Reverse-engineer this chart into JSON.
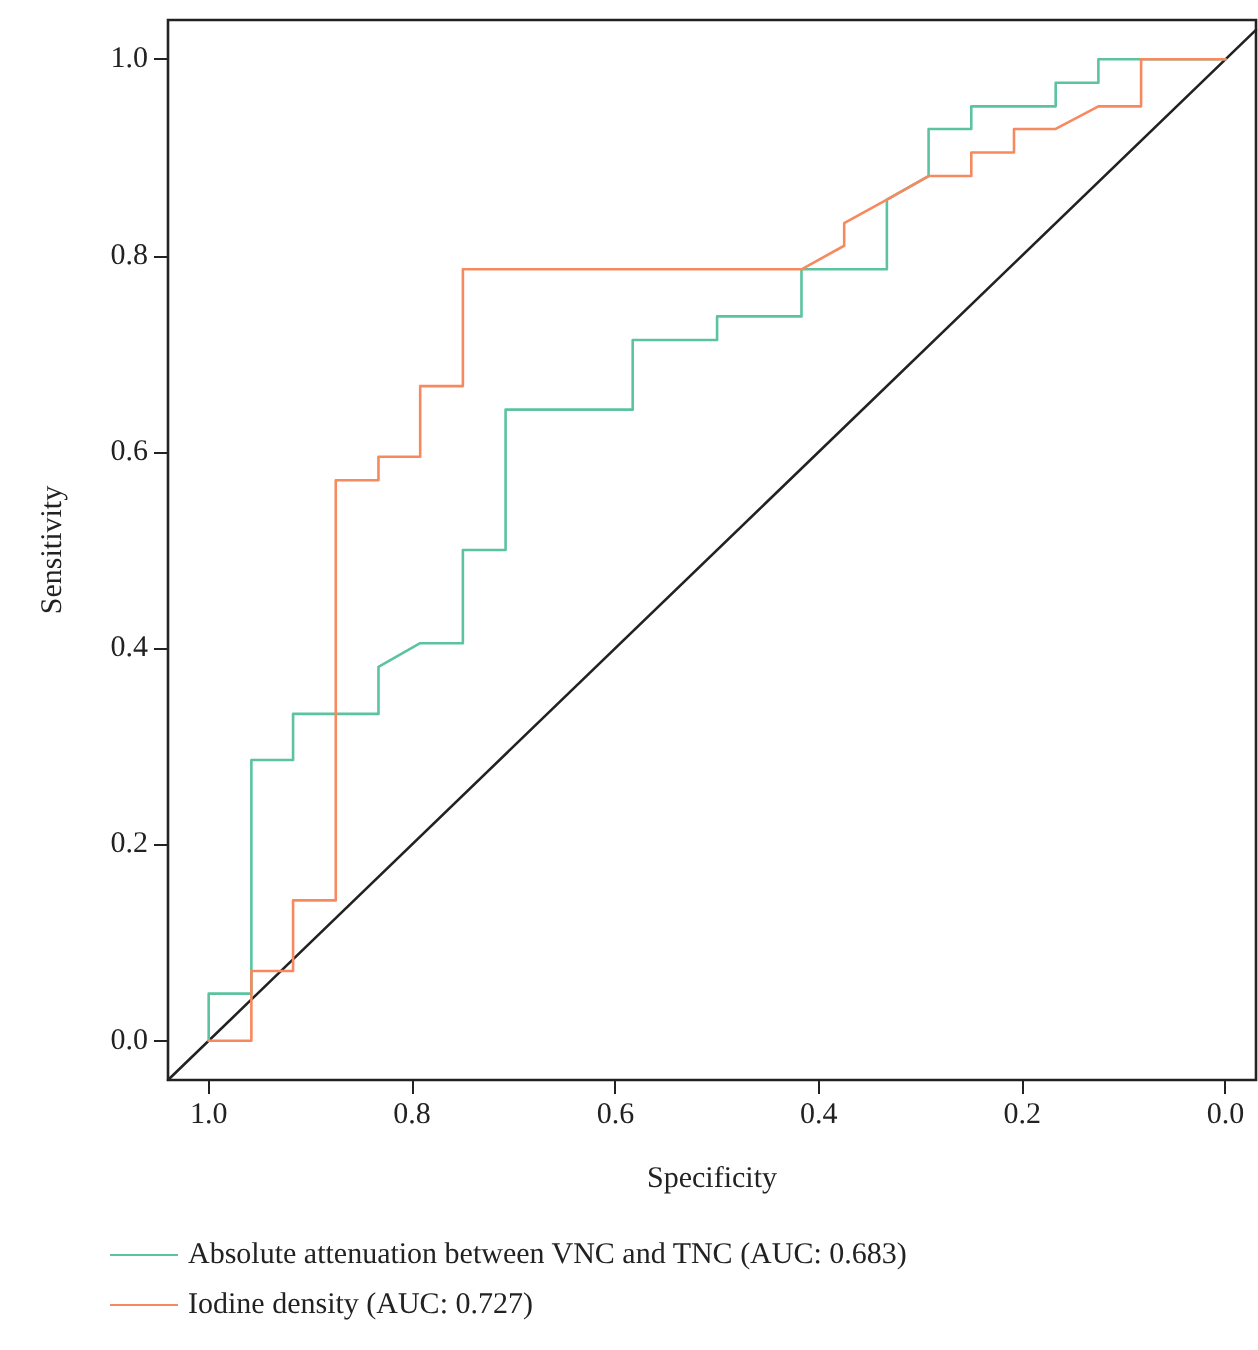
{
  "chart_data": {
    "type": "line",
    "xlabel": "Specificity",
    "ylabel": "Sensitivity",
    "xlim": [
      1.04,
      -0.03
    ],
    "ylim": [
      -0.04,
      1.04
    ],
    "xticks": [
      {
        "value": 1,
        "label": "1.0"
      },
      {
        "value": 0.8,
        "label": "0.8"
      },
      {
        "value": 0.6,
        "label": "0.6"
      },
      {
        "value": 0.4,
        "label": "0.4"
      },
      {
        "value": 0.2,
        "label": "0.2"
      },
      {
        "value": 0,
        "label": "0.0"
      }
    ],
    "yticks": [
      {
        "value": 0,
        "label": "0.0"
      },
      {
        "value": 0.2,
        "label": "0.2"
      },
      {
        "value": 0.4,
        "label": "0.4"
      },
      {
        "value": 0.6,
        "label": "0.6"
      },
      {
        "value": 0.8,
        "label": "0.8"
      },
      {
        "value": 1,
        "label": "1.0"
      }
    ],
    "grid": false,
    "legend": "bottom",
    "marker": "none",
    "line_style": "solid",
    "series": [
      {
        "name": "Absolute attenuation between VNC and TNC (AUC: 0.683)",
        "color": "#5bc49f",
        "x": [
          1,
          1,
          0.958,
          0.958,
          0.917,
          0.917,
          0.833,
          0.833,
          0.792,
          0.75,
          0.75,
          0.708,
          0.708,
          0.583,
          0.583,
          0.5,
          0.5,
          0.417,
          0.417,
          0.333,
          0.333,
          0.292,
          0.292,
          0.25,
          0.25,
          0.167,
          0.167,
          0.125,
          0.125,
          0
        ],
        "values": [
          0,
          0.048,
          0.048,
          0.286,
          0.286,
          0.333,
          0.333,
          0.381,
          0.405,
          0.405,
          0.5,
          0.5,
          0.643,
          0.643,
          0.714,
          0.714,
          0.738,
          0.738,
          0.786,
          0.786,
          0.857,
          0.881,
          0.929,
          0.929,
          0.952,
          0.952,
          0.976,
          0.976,
          1,
          1
        ]
      },
      {
        "name": "Iodine density (AUC: 0.727)",
        "color": "#f7895f",
        "x": [
          1,
          0.958,
          0.958,
          0.917,
          0.917,
          0.875,
          0.875,
          0.833,
          0.833,
          0.792,
          0.792,
          0.75,
          0.75,
          0.417,
          0.375,
          0.375,
          0.333,
          0.292,
          0.25,
          0.25,
          0.208,
          0.208,
          0.167,
          0.125,
          0.083,
          0.083,
          0
        ],
        "values": [
          0,
          0,
          0.071,
          0.071,
          0.143,
          0.143,
          0.571,
          0.571,
          0.595,
          0.595,
          0.667,
          0.667,
          0.786,
          0.786,
          0.81,
          0.833,
          0.857,
          0.881,
          0.881,
          0.905,
          0.905,
          0.929,
          0.929,
          0.952,
          0.952,
          1,
          1
        ]
      },
      {
        "color": "#222222",
        "x": [
          1.04,
          -0.03
        ],
        "values": [
          -0.04,
          1.03
        ]
      }
    ]
  }
}
